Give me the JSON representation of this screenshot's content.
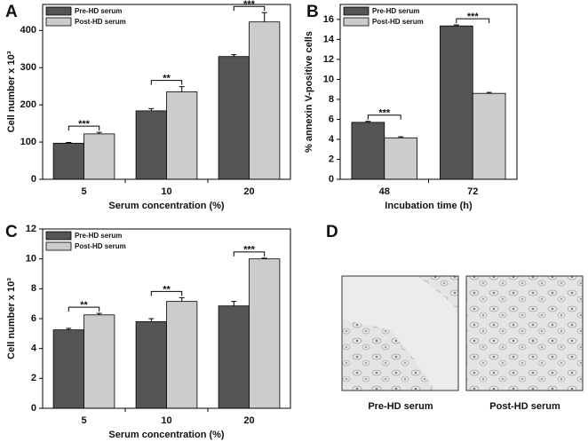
{
  "chart_data": [
    {
      "type": "bar",
      "panel_label": "A",
      "x_label": "Serum concentration (%)",
      "y_label": "Cell number x 10³",
      "categories": [
        "5",
        "10",
        "20"
      ],
      "series": [
        {
          "name": "Pre-HD serum",
          "color": "#555555",
          "values": [
            97,
            184,
            330
          ],
          "errors": [
            2,
            6,
            5
          ]
        },
        {
          "name": "Post-HD serum",
          "color": "#cccccc",
          "values": [
            122,
            235,
            423
          ],
          "errors": [
            4,
            14,
            25
          ]
        }
      ],
      "significance": [
        "***",
        "**",
        "***"
      ],
      "ylim": [
        0,
        470
      ],
      "yticks": [
        0,
        100,
        200,
        300,
        400
      ],
      "grid": false,
      "legend": "upper left"
    },
    {
      "type": "bar",
      "panel_label": "B",
      "x_label": "Incubation time (h)",
      "y_label": "% annexin V-positive cells",
      "categories": [
        "48",
        "72"
      ],
      "series": [
        {
          "name": "Pre-HD serum",
          "color": "#555555",
          "values": [
            5.7,
            15.35
          ],
          "errors": [
            0.1,
            0.1
          ]
        },
        {
          "name": "Post-HD serum",
          "color": "#cccccc",
          "values": [
            4.15,
            8.6
          ],
          "errors": [
            0.1,
            0.1
          ]
        }
      ],
      "significance": [
        "***",
        "***"
      ],
      "ylim": [
        0,
        17.5
      ],
      "yticks": [
        0,
        2,
        4,
        6,
        8,
        10,
        12,
        14,
        16
      ],
      "grid": false,
      "legend": "upper left"
    },
    {
      "type": "bar",
      "panel_label": "C",
      "x_label": "Serum concentration (%)",
      "y_label": "Cell number x 10³",
      "categories": [
        "5",
        "10",
        "20"
      ],
      "series": [
        {
          "name": "Pre-HD serum",
          "color": "#555555",
          "values": [
            5.25,
            5.8,
            6.85
          ],
          "errors": [
            0.1,
            0.2,
            0.3
          ]
        },
        {
          "name": "Post-HD serum",
          "color": "#cccccc",
          "values": [
            6.25,
            7.15,
            10.0
          ],
          "errors": [
            0.1,
            0.25,
            0.05
          ]
        }
      ],
      "significance": [
        "**",
        "**",
        "***"
      ],
      "ylim": [
        0,
        12
      ],
      "yticks": [
        0,
        2,
        4,
        6,
        8,
        10,
        12
      ],
      "grid": false,
      "legend": "upper left"
    }
  ],
  "panel_d": {
    "label": "D",
    "captions": [
      "Pre-HD serum",
      "Post-HD serum"
    ]
  }
}
